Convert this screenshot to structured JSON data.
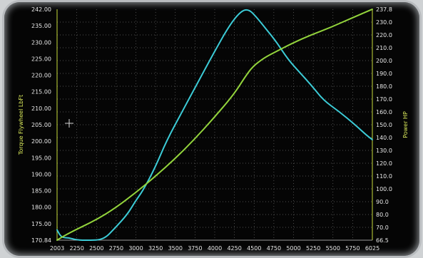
{
  "chart_data": {
    "type": "line",
    "title": "",
    "xlabel": "",
    "ylabel_left": "Torque Flywheel LbFt",
    "ylabel_right": "Power HP",
    "x_ticks": [
      "2003",
      "2250",
      "2500",
      "2750",
      "3000",
      "3250",
      "3500",
      "3750",
      "4000",
      "4250",
      "4500",
      "4750",
      "5000",
      "5250",
      "5500",
      "5750",
      "6025"
    ],
    "y_left_ticks": [
      "170.84",
      "175.00",
      "180.00",
      "185.00",
      "190.00",
      "195.00",
      "200.00",
      "205.00",
      "210.00",
      "215.00",
      "220.00",
      "225.00",
      "230.00",
      "235.00",
      "242.00"
    ],
    "y_right_ticks": [
      "66.5",
      "70.0",
      "80.0",
      "90.0",
      "100.0",
      "110.0",
      "120.0",
      "130.0",
      "140.0",
      "150.0",
      "160.0",
      "170.0",
      "180.0",
      "190.0",
      "200.0",
      "210.0",
      "220.0",
      "230.0",
      "237.8"
    ],
    "xlim": [
      2003,
      6025
    ],
    "ylim_left": [
      170.84,
      242.0
    ],
    "ylim_right": [
      66.5,
      237.8
    ],
    "grid": true,
    "series": [
      {
        "color": "#3ccbd6",
        "axis": "left",
        "x": [
          2003,
          2060,
          2150,
          2250,
          2400,
          2600,
          2750,
          2900,
          3000,
          3100,
          3250,
          3400,
          3600,
          3800,
          4000,
          4200,
          4350,
          4450,
          4550,
          4650,
          4800,
          4950,
          5100,
          5250,
          5400,
          5600,
          5800,
          5950,
          6025
        ],
        "y": [
          174.0,
          171.6,
          171.6,
          170.9,
          170.8,
          171.0,
          174.8,
          178.8,
          182.8,
          186.2,
          193.0,
          201.5,
          210.5,
          219.5,
          228.5,
          237.0,
          241.5,
          242.0,
          239.5,
          236.5,
          232.0,
          226.5,
          222.5,
          218.5,
          214.0,
          210.5,
          206.5,
          203.2,
          201.8
        ]
      },
      {
        "color": "#93d43c",
        "axis": "right",
        "x": [
          2003,
          2100,
          2250,
          2500,
          2750,
          3000,
          3250,
          3500,
          3750,
          4000,
          4250,
          4400,
          4500,
          4650,
          4800,
          5000,
          5250,
          5500,
          5750,
          6025
        ],
        "y": [
          66.5,
          70.0,
          74.5,
          81.5,
          90.5,
          101.5,
          113.5,
          126.5,
          141.0,
          157.0,
          174.0,
          187.5,
          195.5,
          202.0,
          206.5,
          212.5,
          219.0,
          224.5,
          231.0,
          237.8
        ]
      }
    ]
  }
}
